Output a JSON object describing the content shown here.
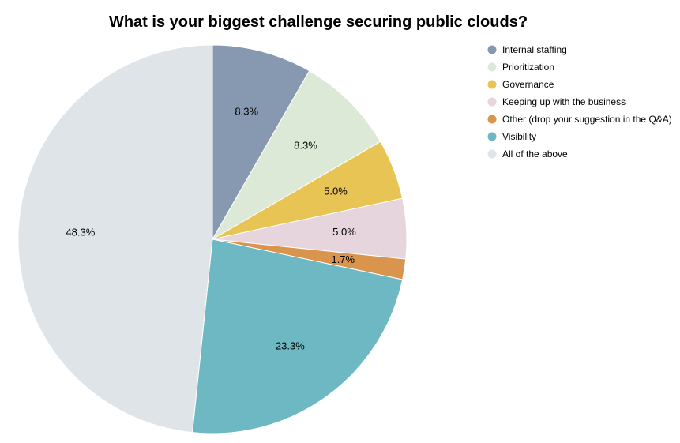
{
  "chart_data": {
    "type": "pie",
    "title": "What is your biggest challenge securing public clouds?",
    "legend_position": "top-right",
    "start": "12 o'clock",
    "direction": "clockwise",
    "slices": [
      {
        "label": "Internal staffing",
        "legend_text": " Internal staffing",
        "value": 8.3,
        "display": "8.3%",
        "color": "#8799b0"
      },
      {
        "label": "Prioritization",
        "legend_text": " Prioritization",
        "value": 8.3,
        "display": "8.3%",
        "color": "#dde9d7"
      },
      {
        "label": "Governance",
        "legend_text": "Governance",
        "value": 5.0,
        "display": "5.0%",
        "color": "#e8c455"
      },
      {
        "label": "Keeping up with the business",
        "legend_text": "Keeping up with the business",
        "value": 5.0,
        "display": "5.0%",
        "color": "#e6d5dc"
      },
      {
        "label": "Other (drop your suggestion in the Q&A)",
        "legend_text": "Other (drop your suggestion in the Q&A)",
        "value": 1.7,
        "display": "1.7%",
        "color": "#d9944d"
      },
      {
        "label": "Visibility",
        "legend_text": "Visibility",
        "value": 23.3,
        "display": "23.3%",
        "color": "#6db8c2"
      },
      {
        "label": "All of the above",
        "legend_text": "All of the above",
        "value": 48.3,
        "display": "48.3%",
        "color": "#dfe4e9"
      }
    ]
  }
}
